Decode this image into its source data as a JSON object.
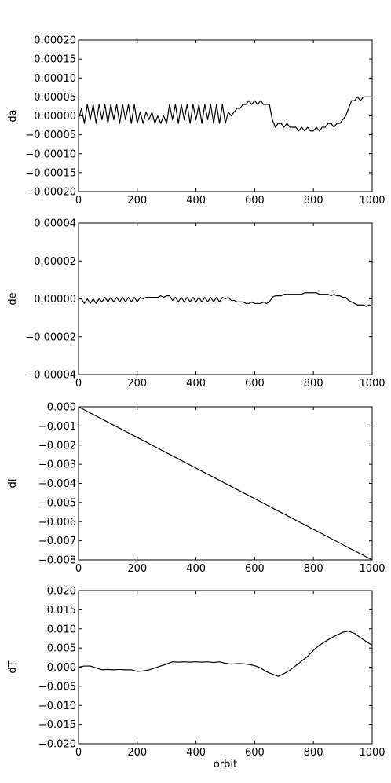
{
  "chart_data": [
    {
      "type": "line",
      "ylabel": "da",
      "xlabel": "",
      "xlim": [
        0,
        1000
      ],
      "ylim": [
        -0.0002,
        0.0002
      ],
      "xticks": [
        "0",
        "200",
        "400",
        "600",
        "800",
        "1000"
      ],
      "yticks": [
        "0.00020",
        "0.00015",
        "0.00010",
        "0.00005",
        "0.00000",
        "−0.00005",
        "−0.00010",
        "−0.00015",
        "−0.00020"
      ],
      "x": [
        0,
        10,
        20,
        30,
        40,
        50,
        60,
        70,
        80,
        90,
        100,
        110,
        120,
        130,
        140,
        150,
        160,
        170,
        180,
        190,
        200,
        210,
        220,
        230,
        240,
        250,
        260,
        270,
        280,
        290,
        300,
        310,
        320,
        330,
        340,
        350,
        360,
        370,
        380,
        390,
        400,
        410,
        420,
        430,
        440,
        450,
        460,
        470,
        480,
        490,
        500,
        510,
        520,
        530,
        540,
        550,
        560,
        570,
        580,
        590,
        600,
        610,
        620,
        630,
        640,
        650,
        660,
        670,
        680,
        690,
        700,
        710,
        720,
        730,
        740,
        750,
        760,
        770,
        780,
        790,
        800,
        810,
        820,
        830,
        840,
        850,
        860,
        870,
        880,
        890,
        900,
        910,
        920,
        930,
        940,
        950,
        960,
        970,
        980,
        990,
        1000
      ],
      "y": [
        -1e-05,
        2e-05,
        -2e-05,
        3e-05,
        -1e-05,
        3e-05,
        -2e-05,
        3e-05,
        -1e-05,
        3e-05,
        -2e-05,
        3e-05,
        -1e-05,
        3e-05,
        -2e-05,
        3e-05,
        -1e-05,
        3e-05,
        -2e-05,
        3e-05,
        -2e-05,
        1e-05,
        -2e-05,
        1e-05,
        -1e-05,
        1e-05,
        -2e-05,
        0.0,
        -2e-05,
        0.0,
        -2e-05,
        3e-05,
        -1e-05,
        3e-05,
        -2e-05,
        3e-05,
        -1e-05,
        3e-05,
        -2e-05,
        3e-05,
        -1e-05,
        3e-05,
        -2e-05,
        3e-05,
        -1e-05,
        3e-05,
        -2e-05,
        3e-05,
        -2e-05,
        3e-05,
        -2e-05,
        1e-05,
        0.0,
        1e-05,
        2e-05,
        2e-05,
        3e-05,
        3e-05,
        4e-05,
        3e-05,
        4e-05,
        3e-05,
        4e-05,
        3e-05,
        3e-05,
        3e-05,
        -1e-05,
        -3e-05,
        -2e-05,
        -2e-05,
        -3e-05,
        -2e-05,
        -3e-05,
        -3e-05,
        -3e-05,
        -4e-05,
        -3e-05,
        -4e-05,
        -3e-05,
        -4e-05,
        -4e-05,
        -3e-05,
        -4e-05,
        -3e-05,
        -3e-05,
        -2e-05,
        -2e-05,
        -3e-05,
        -2e-05,
        -2e-05,
        -1e-05,
        0.0,
        2e-05,
        4e-05,
        4e-05,
        5e-05,
        4e-05,
        5e-05,
        5e-05,
        5e-05,
        5e-05
      ]
    },
    {
      "type": "line",
      "ylabel": "de",
      "xlabel": "",
      "xlim": [
        0,
        1000
      ],
      "ylim": [
        -5e-05,
        5e-05
      ],
      "xticks": [
        "0",
        "200",
        "400",
        "600",
        "800",
        "1000"
      ],
      "yticks": [
        "0.00004",
        "0.00002",
        "0.00000",
        "−0.00002",
        "−0.00004"
      ],
      "x": [
        0,
        10,
        20,
        30,
        40,
        50,
        60,
        70,
        80,
        90,
        100,
        110,
        120,
        130,
        140,
        150,
        160,
        170,
        180,
        190,
        200,
        210,
        220,
        230,
        240,
        250,
        260,
        270,
        280,
        290,
        300,
        310,
        320,
        330,
        340,
        350,
        360,
        370,
        380,
        390,
        400,
        410,
        420,
        430,
        440,
        450,
        460,
        470,
        480,
        490,
        500,
        510,
        520,
        530,
        540,
        550,
        560,
        570,
        580,
        590,
        600,
        610,
        620,
        630,
        640,
        650,
        660,
        670,
        680,
        690,
        700,
        710,
        720,
        730,
        740,
        750,
        760,
        770,
        780,
        790,
        800,
        810,
        820,
        830,
        840,
        850,
        860,
        870,
        880,
        890,
        900,
        910,
        920,
        930,
        940,
        950,
        960,
        970,
        980,
        990,
        1000
      ],
      "y": [
        0.0,
        0.0,
        -3e-06,
        0.0,
        -3e-06,
        0.0,
        -3e-06,
        0.0,
        -2e-06,
        1e-06,
        -2e-06,
        1e-06,
        -2e-06,
        1e-06,
        -2e-06,
        1e-06,
        -2e-06,
        1e-06,
        -2e-06,
        1e-06,
        -2e-06,
        1e-06,
        0.0,
        1e-06,
        1e-06,
        1e-06,
        1e-06,
        1e-06,
        2e-06,
        1e-06,
        2e-06,
        2e-06,
        -1e-06,
        1e-06,
        -2e-06,
        1e-06,
        -2e-06,
        1e-06,
        -2e-06,
        1e-06,
        -2e-06,
        1e-06,
        -2e-06,
        1e-06,
        -2e-06,
        1e-06,
        -2e-06,
        1e-06,
        -2e-06,
        1e-06,
        0.0,
        1e-06,
        -1e-06,
        -1e-06,
        -2e-06,
        -2e-06,
        -2e-06,
        -3e-06,
        -3e-06,
        -2e-06,
        -3e-06,
        -3e-06,
        -3e-06,
        -2e-06,
        -3e-06,
        -2e-06,
        1e-06,
        2e-06,
        2e-06,
        2e-06,
        3e-06,
        3e-06,
        3e-06,
        3e-06,
        3e-06,
        3e-06,
        3e-06,
        4e-06,
        4e-06,
        4e-06,
        4e-06,
        4e-06,
        3e-06,
        3e-06,
        3e-06,
        3e-06,
        2e-06,
        3e-06,
        2e-06,
        2e-06,
        1e-06,
        1e-06,
        -1e-06,
        -2e-06,
        -3e-06,
        -4e-06,
        -4e-06,
        -4e-06,
        -5e-06,
        -4e-06,
        -5e-06
      ]
    },
    {
      "type": "line",
      "ylabel": "dl",
      "xlabel": "",
      "xlim": [
        0,
        1000
      ],
      "ylim": [
        -0.008,
        0.0
      ],
      "xticks": [
        "0",
        "200",
        "400",
        "600",
        "800",
        "1000"
      ],
      "yticks": [
        "0.000",
        "−0.001",
        "−0.002",
        "−0.003",
        "−0.004",
        "−0.005",
        "−0.006",
        "−0.007",
        "−0.008"
      ],
      "x": [
        0,
        1000
      ],
      "y": [
        0.0,
        -0.008
      ]
    },
    {
      "type": "line",
      "ylabel": "dT",
      "xlabel": "orbit",
      "xlim": [
        0,
        1000
      ],
      "ylim": [
        -0.02,
        0.02
      ],
      "xticks": [
        "0",
        "200",
        "400",
        "600",
        "800",
        "1000"
      ],
      "yticks": [
        "0.020",
        "0.015",
        "0.010",
        "0.005",
        "0.000",
        "−0.005",
        "−0.010",
        "−0.015",
        "−0.020"
      ],
      "x": [
        0,
        20,
        40,
        60,
        80,
        100,
        120,
        140,
        160,
        180,
        200,
        220,
        240,
        260,
        280,
        300,
        320,
        340,
        360,
        380,
        400,
        420,
        440,
        460,
        480,
        500,
        520,
        540,
        560,
        580,
        600,
        620,
        640,
        660,
        680,
        700,
        720,
        740,
        760,
        780,
        800,
        820,
        840,
        860,
        880,
        900,
        920,
        940,
        960,
        980,
        1000
      ],
      "y": [
        0.0,
        0.0003,
        0.0003,
        -0.0002,
        -0.0007,
        -0.0006,
        -0.0007,
        -0.0006,
        -0.0007,
        -0.0007,
        -0.0011,
        -0.001,
        -0.0007,
        -0.0002,
        0.0003,
        0.0008,
        0.0014,
        0.0013,
        0.0014,
        0.0013,
        0.0014,
        0.0013,
        0.0014,
        0.0012,
        0.0014,
        0.001,
        0.0008,
        0.0009,
        0.0009,
        0.0007,
        0.0004,
        -0.0002,
        -0.0012,
        -0.0018,
        -0.0024,
        -0.0017,
        -0.0008,
        0.0004,
        0.0016,
        0.0028,
        0.0044,
        0.0057,
        0.0067,
        0.0076,
        0.0084,
        0.0091,
        0.0094,
        0.0088,
        0.0077,
        0.0067,
        0.0057
      ]
    }
  ]
}
